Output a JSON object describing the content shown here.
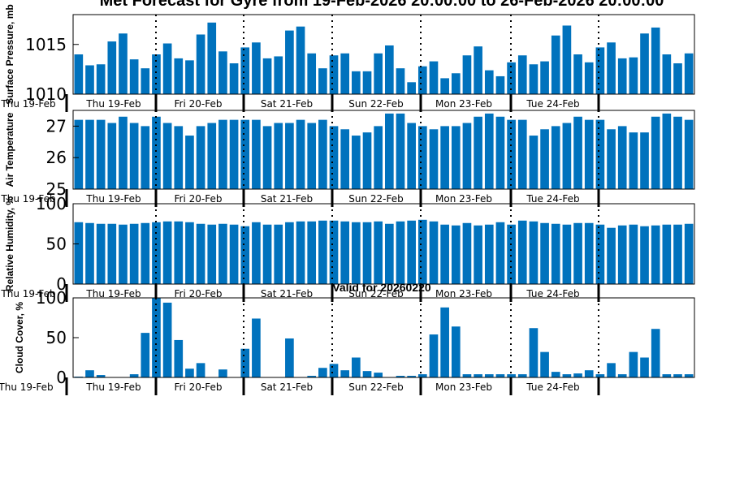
{
  "title": "Met Forecast for Gyre from 19-Feb-2026 20:00:00 to 26-Feb-2026 20:00:00",
  "subtitle": "Valid for 20260220",
  "bar_color": "#0072bd",
  "chart_data": [
    {
      "type": "bar",
      "ylabel": "Surface Pressure, mb",
      "ylim": [
        1010,
        1018
      ],
      "yticks": [
        "1010",
        "1015"
      ],
      "ytick_values": [
        1010,
        1015
      ],
      "start_label": "Thu 19-Feb",
      "day_labels": [
        "Thu 19-Feb",
        "Fri 20-Feb",
        "Sat 21-Feb",
        "Sun 22-Feb",
        "Mon 23-Feb",
        "Tue 24-Feb"
      ],
      "values": [
        1014,
        1012.9,
        1013,
        1015.3,
        1016.1,
        1013.5,
        1012.6,
        1014,
        1015.1,
        1013.6,
        1013.4,
        1016,
        1017.2,
        1014.3,
        1013.1,
        1014.7,
        1015.2,
        1013.6,
        1013.8,
        1016.4,
        1016.8,
        1014.1,
        1012.6,
        1013.9,
        1014.1,
        1012.3,
        1012.3,
        1014.1,
        1014.9,
        1012.6,
        1011.2,
        1012.8,
        1013.3,
        1011.6,
        1012.1,
        1013.9,
        1014.8,
        1012.4,
        1011.8,
        1013.2,
        1013.9,
        1013,
        1013.3,
        1015.9,
        1016.9,
        1014,
        1013.2,
        1014.7,
        1015.2,
        1013.6,
        1013.7,
        1016.1,
        1016.7,
        1014,
        1013.1,
        1014.1
      ]
    },
    {
      "type": "bar",
      "ylabel": "Air Temperature",
      "ylim": [
        25,
        27.5
      ],
      "yticks": [
        "25",
        "26",
        "27"
      ],
      "ytick_values": [
        25,
        26,
        27
      ],
      "start_label": "Thu 19-Feb",
      "day_labels": [
        "Thu 19-Feb",
        "Fri 20-Feb",
        "Sat 21-Feb",
        "Sun 22-Feb",
        "Mon 23-Feb",
        "Tue 24-Feb"
      ],
      "values": [
        27.2,
        27.2,
        27.2,
        27.1,
        27.3,
        27.1,
        27,
        27.3,
        27.1,
        27,
        26.7,
        27,
        27.1,
        27.2,
        27.2,
        27.2,
        27.2,
        27,
        27.1,
        27.1,
        27.2,
        27.1,
        27.2,
        27,
        26.9,
        26.7,
        26.8,
        27,
        27.4,
        27.4,
        27.1,
        27,
        26.9,
        27,
        27,
        27.1,
        27.3,
        27.4,
        27.3,
        27.2,
        27.2,
        26.7,
        26.9,
        27,
        27.1,
        27.3,
        27.2,
        27.2,
        26.9,
        27,
        26.8,
        26.8,
        27.3,
        27.4,
        27.3,
        27.2
      ]
    },
    {
      "type": "bar",
      "ylabel": "Relative Humidity, %",
      "ylim": [
        0,
        100
      ],
      "yticks": [
        "0",
        "50",
        "100"
      ],
      "ytick_values": [
        0,
        50,
        100
      ],
      "start_label": "Thu 19-Feb",
      "day_labels": [
        "Thu 19-Feb",
        "Fri 20-Feb",
        "Sat 21-Feb",
        "Sun 22-Feb",
        "Mon 23-Feb",
        "Tue 24-Feb"
      ],
      "values": [
        77,
        76,
        75,
        75,
        74,
        75,
        76,
        77,
        78,
        78,
        77,
        75,
        74,
        75,
        74,
        72,
        77,
        74,
        74,
        77,
        78,
        78,
        79,
        79,
        78,
        77,
        77,
        78,
        75,
        78,
        79,
        80,
        78,
        74,
        73,
        76,
        73,
        74,
        77,
        74,
        79,
        78,
        76,
        75,
        74,
        76,
        76,
        74,
        70,
        73,
        74,
        72,
        73,
        74,
        74,
        75
      ]
    },
    {
      "type": "bar",
      "ylabel": "Cloud Cover, %",
      "ylim": [
        0,
        100
      ],
      "yticks": [
        "0",
        "50",
        "100"
      ],
      "ytick_values": [
        0,
        50,
        100
      ],
      "start_label": "Thu 19-Feb",
      "day_labels": [
        "Thu 19-Feb",
        "Fri 20-Feb",
        "Sat 21-Feb",
        "Sun 22-Feb",
        "Mon 23-Feb",
        "Tue 24-Feb"
      ],
      "values": [
        1,
        9,
        3,
        0,
        0,
        4,
        56,
        100,
        94,
        47,
        11,
        18,
        0,
        10,
        0,
        36,
        74,
        0,
        0,
        49,
        0,
        2,
        12,
        17,
        9,
        25,
        8,
        6,
        0,
        2,
        2,
        4,
        54,
        88,
        64,
        4,
        4,
        4,
        4,
        4,
        4,
        62,
        32,
        7,
        4,
        5,
        9,
        4,
        18,
        4,
        32,
        25,
        61,
        4,
        4,
        4
      ]
    }
  ]
}
